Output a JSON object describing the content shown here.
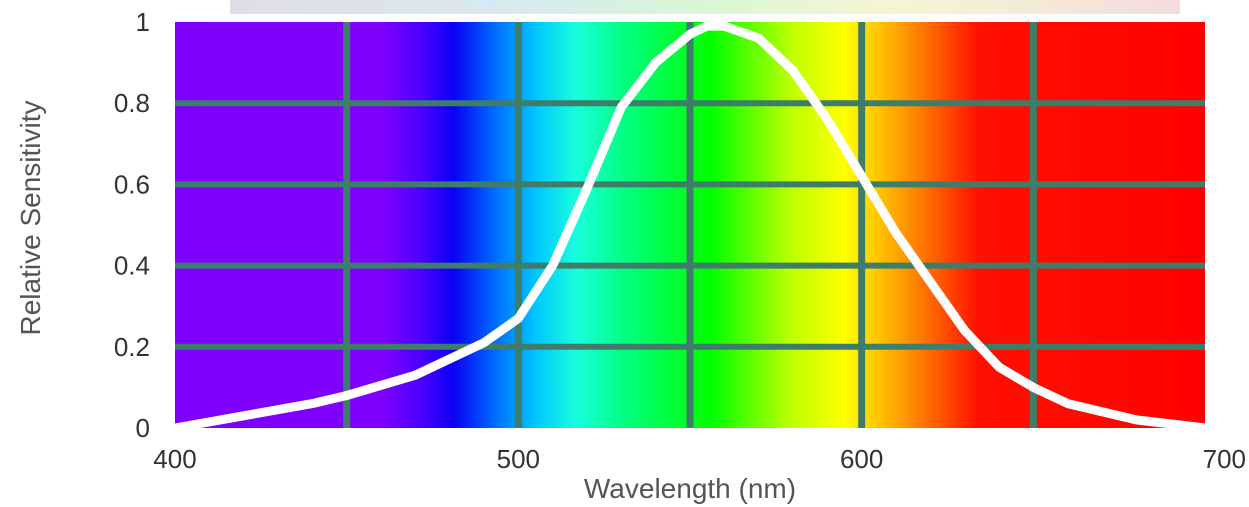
{
  "chart_data": {
    "type": "line",
    "xlabel": "Wavelength (nm)",
    "ylabel": "Relative Sensitivity",
    "xlim": [
      400,
      700
    ],
    "ylim": [
      0,
      1
    ],
    "x_ticks": [
      400,
      500,
      600,
      700
    ],
    "x_tick_labels": [
      "400",
      "500",
      "600",
      "700"
    ],
    "y_ticks": [
      0,
      0.2,
      0.4,
      0.6,
      0.8,
      1
    ],
    "y_tick_labels": [
      "0",
      "0.2",
      "0.4",
      "0.6",
      "0.8",
      "1"
    ],
    "x_grid": [
      450,
      500,
      550,
      600,
      650
    ],
    "grid": true,
    "series": [
      {
        "color": "#ffffff",
        "x": [
          400,
          420,
          440,
          450,
          470,
          490,
          500,
          510,
          520,
          530,
          540,
          550,
          555,
          560,
          570,
          580,
          590,
          600,
          610,
          620,
          630,
          640,
          650,
          660,
          670,
          680,
          690,
          700
        ],
        "y": [
          0.0,
          0.03,
          0.06,
          0.08,
          0.13,
          0.21,
          0.27,
          0.4,
          0.59,
          0.79,
          0.9,
          0.97,
          0.99,
          0.99,
          0.96,
          0.88,
          0.76,
          0.62,
          0.48,
          0.36,
          0.24,
          0.15,
          0.1,
          0.06,
          0.04,
          0.02,
          0.01,
          0.0
        ]
      }
    ],
    "background": "visible spectrum gradient",
    "grid_color": "#3e7d6a"
  }
}
